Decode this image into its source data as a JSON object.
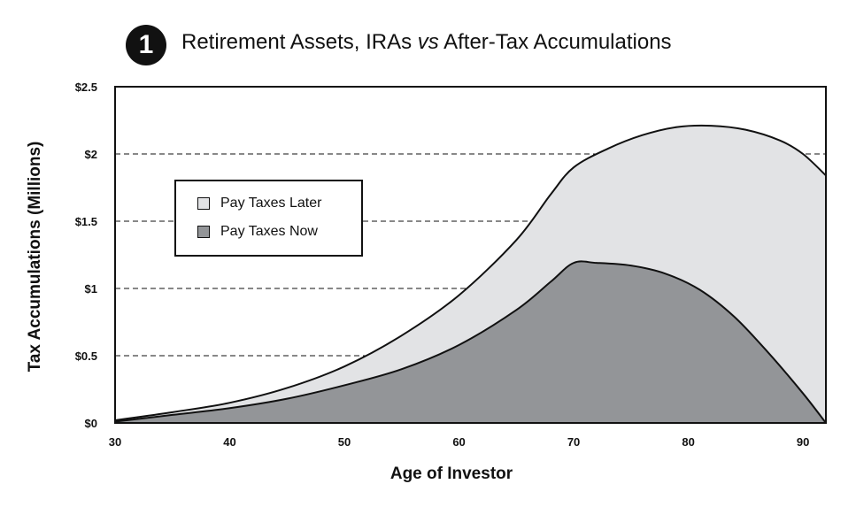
{
  "header": {
    "badge": "1",
    "title_pre": "Retirement Assets, IRAs ",
    "title_em": "vs",
    "title_post": " After-Tax Accumulations"
  },
  "chart_data": {
    "type": "area",
    "title": "Retirement Assets, IRAs vs After-Tax Accumulations",
    "xlabel": "Age of Investor",
    "ylabel": "Tax Accumulations (Millions)",
    "xlim": [
      30,
      92
    ],
    "ylim": [
      0,
      2.5
    ],
    "x_ticks": [
      30,
      40,
      50,
      60,
      70,
      80,
      90
    ],
    "x_tick_labels": [
      "30",
      "40",
      "50",
      "60",
      "70",
      "80",
      "90"
    ],
    "y_ticks": [
      0,
      0.5,
      1,
      1.5,
      2,
      2.5
    ],
    "y_tick_labels": [
      "$0",
      "$0.5",
      "$1",
      "$1.5",
      "$2",
      "$2.5"
    ],
    "gridlines": "horizontal dashed",
    "legend_position": "upper-left",
    "series": [
      {
        "name": "Pay Taxes Later",
        "color": "#e2e3e5",
        "points": [
          [
            30,
            0.02
          ],
          [
            35,
            0.08
          ],
          [
            40,
            0.15
          ],
          [
            45,
            0.26
          ],
          [
            50,
            0.42
          ],
          [
            55,
            0.65
          ],
          [
            60,
            0.95
          ],
          [
            65,
            1.36
          ],
          [
            68,
            1.7
          ],
          [
            70,
            1.9
          ],
          [
            73,
            2.04
          ],
          [
            76,
            2.14
          ],
          [
            79,
            2.2
          ],
          [
            82,
            2.21
          ],
          [
            85,
            2.18
          ],
          [
            88,
            2.1
          ],
          [
            90,
            2.0
          ],
          [
            92,
            1.84
          ]
        ]
      },
      {
        "name": "Pay Taxes Now",
        "color": "#939598",
        "points": [
          [
            30,
            0.01
          ],
          [
            35,
            0.06
          ],
          [
            40,
            0.11
          ],
          [
            45,
            0.18
          ],
          [
            50,
            0.28
          ],
          [
            55,
            0.4
          ],
          [
            60,
            0.58
          ],
          [
            65,
            0.84
          ],
          [
            68,
            1.05
          ],
          [
            70,
            1.19
          ],
          [
            72,
            1.19
          ],
          [
            75,
            1.17
          ],
          [
            78,
            1.11
          ],
          [
            81,
            0.99
          ],
          [
            84,
            0.79
          ],
          [
            87,
            0.52
          ],
          [
            90,
            0.22
          ],
          [
            92,
            0.0
          ]
        ]
      }
    ]
  }
}
